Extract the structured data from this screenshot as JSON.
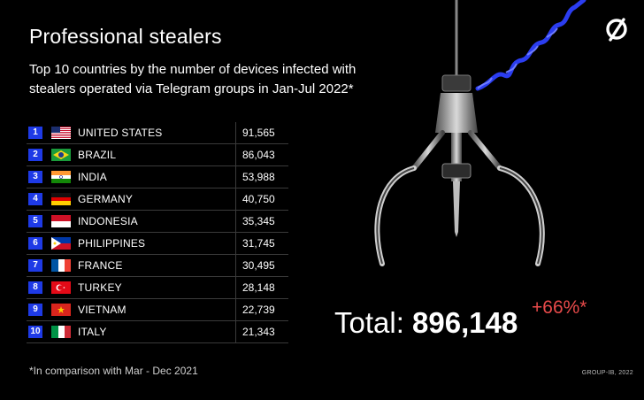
{
  "header": {
    "title": "Professional stealers",
    "subtitle": "Top 10 countries by the number of devices infected with stealers operated via Telegram groups in Jan-Jul 2022*"
  },
  "chart_data": {
    "type": "table",
    "columns": [
      "rank",
      "country",
      "devices"
    ],
    "rows": [
      {
        "rank": "1",
        "country": "UNITED STATES",
        "value": "91,565",
        "flag": "us"
      },
      {
        "rank": "2",
        "country": "BRAZIL",
        "value": "86,043",
        "flag": "br"
      },
      {
        "rank": "3",
        "country": "INDIA",
        "value": "53,988",
        "flag": "in"
      },
      {
        "rank": "4",
        "country": "GERMANY",
        "value": "40,750",
        "flag": "de"
      },
      {
        "rank": "5",
        "country": "INDONESIA",
        "value": "35,345",
        "flag": "id"
      },
      {
        "rank": "6",
        "country": "PHILIPPINES",
        "value": "31,745",
        "flag": "ph"
      },
      {
        "rank": "7",
        "country": "FRANCE",
        "value": "30,495",
        "flag": "fr"
      },
      {
        "rank": "8",
        "country": "TURKEY",
        "value": "28,148",
        "flag": "tr"
      },
      {
        "rank": "9",
        "country": "VIETNAM",
        "value": "22,739",
        "flag": "vn"
      },
      {
        "rank": "10",
        "country": "ITALY",
        "value": "21,343",
        "flag": "it"
      }
    ]
  },
  "summary": {
    "total_label": "Total:",
    "total_value": "896,148",
    "change": "+66%*"
  },
  "footnote": "*In comparison with Mar - Dec 2021",
  "brand": "GROUP-IB, 2022",
  "colors": {
    "background": "#000000",
    "rank_badge": "#1e3ae6",
    "change": "#e84a4a",
    "cable": "#2b3df0"
  },
  "icons": {
    "logo": "group-ib-logo-icon",
    "illustration": "robotic-claw-icon"
  }
}
